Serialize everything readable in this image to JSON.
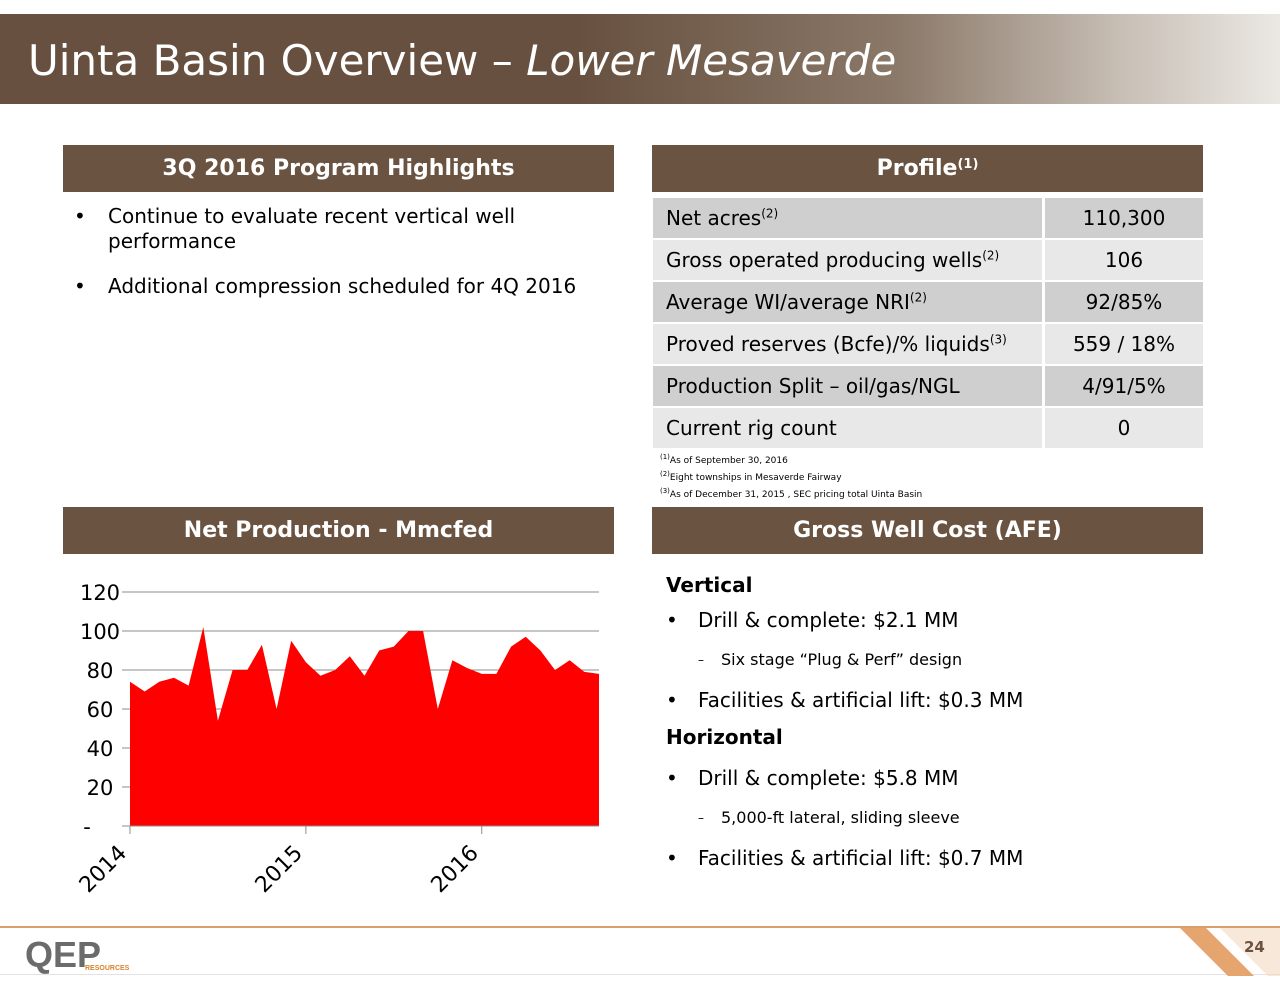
{
  "header": {
    "title_main": "Uinta Basin Overview – ",
    "title_italic": "Lower Mesaverde"
  },
  "highlights": {
    "heading": "3Q 2016 Program Highlights",
    "bullets": [
      "Continue to evaluate recent vertical well performance",
      "Additional compression scheduled for 4Q 2016"
    ]
  },
  "profile": {
    "heading": "Profile",
    "heading_note": "(1)",
    "rows": [
      {
        "label": "Net acres",
        "note": "(2)",
        "value": "110,300"
      },
      {
        "label": "Gross operated producing wells",
        "note": "(2)",
        "value": "106"
      },
      {
        "label": "Average WI/average NRI",
        "note": "(2)",
        "value": "92/85%"
      },
      {
        "label": "Proved reserves (Bcfe)/% liquids",
        "note": "(3)",
        "value": "559 / 18%"
      },
      {
        "label": "Production Split – oil/gas/NGL",
        "note": "",
        "value": "4/91/5%"
      },
      {
        "label": "Current rig count",
        "note": "",
        "value": "0"
      }
    ],
    "footnotes": [
      {
        "mark": "(1)",
        "text": "As of September 30, 2016"
      },
      {
        "mark": "(2)",
        "text": "Eight townships in Mesaverde Fairway"
      },
      {
        "mark": "(3)",
        "text": "As of December 31, 2015 , SEC pricing total Uinta Basin"
      }
    ]
  },
  "production": {
    "heading": "Net Production - Mmcfed"
  },
  "chart_data": {
    "type": "area",
    "title": "",
    "ylim": [
      0,
      120
    ],
    "y_ticks": [
      "-",
      "20",
      "40",
      "60",
      "80",
      "100",
      "120"
    ],
    "x_ticks": [
      "2014",
      "2015",
      "2016"
    ],
    "grid": true,
    "series": [
      {
        "values": [
          74,
          69,
          74,
          76,
          72,
          102,
          54,
          80,
          80,
          93,
          60,
          95,
          84,
          77,
          80,
          87,
          77,
          90,
          92,
          100,
          100,
          60,
          85,
          81,
          78,
          78,
          92,
          97,
          90,
          80,
          85,
          79,
          78
        ]
      }
    ]
  },
  "afe": {
    "heading": "Gross Well Cost (AFE)",
    "vertical_heading": "Vertical",
    "vertical_drill": "Drill & complete: $2.1 MM",
    "vertical_sub": "Six stage “Plug & Perf” design",
    "vertical_facilities": "Facilities & artificial lift:  $0.3 MM",
    "horizontal_heading": "Horizontal",
    "horizontal_drill": "Drill & complete:  $5.8 MM",
    "horizontal_sub": "5,000-ft lateral, sliding sleeve",
    "horizontal_facilities": "Facilities & artificial lift: $0.7 MM"
  },
  "footer": {
    "logo_text": "QEP",
    "logo_sub": "RESOURCES",
    "page_number": "24"
  },
  "colors": {
    "brand_brown": "#6a5340",
    "area_red": "#ff0000",
    "accent_orange": "#d9a06b"
  }
}
